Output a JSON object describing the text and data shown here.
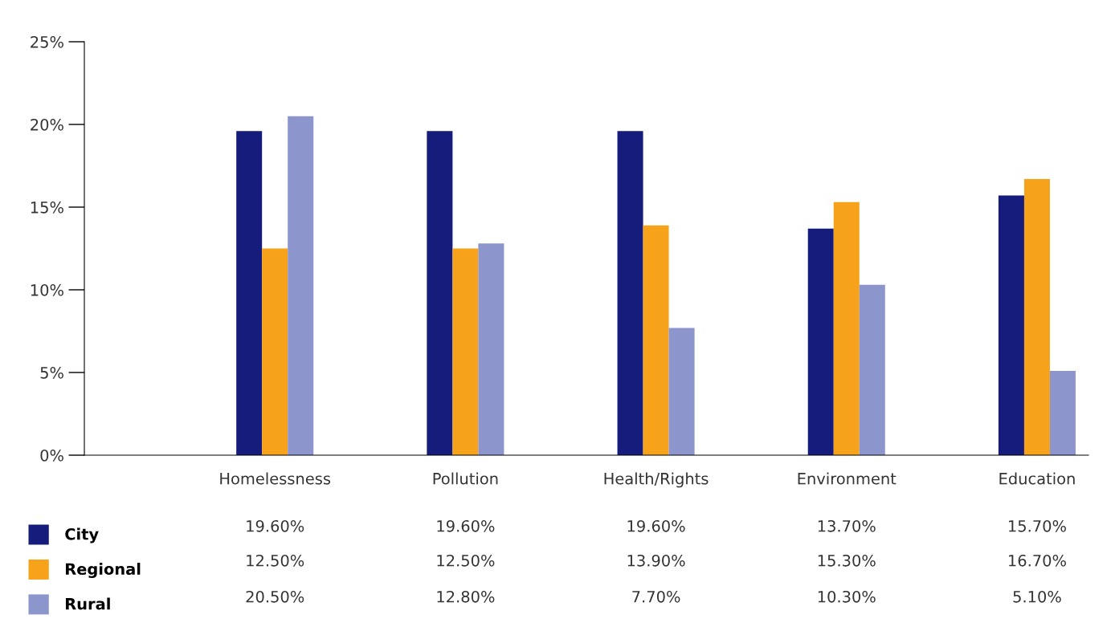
{
  "chart_data": {
    "type": "bar",
    "categories": [
      "Homelessness",
      "Pollution",
      "Health/Rights",
      "Environment",
      "Education"
    ],
    "series": [
      {
        "name": "City",
        "color": "#161c7c",
        "values": [
          19.6,
          19.6,
          19.6,
          13.7,
          15.7
        ],
        "value_labels": [
          "19.60%",
          "19.60%",
          "19.60%",
          "13.70%",
          "15.70%"
        ]
      },
      {
        "name": "Regional",
        "color": "#f7a21b",
        "values": [
          12.5,
          12.5,
          13.9,
          15.3,
          16.7
        ],
        "value_labels": [
          "12.50%",
          "12.50%",
          "13.90%",
          "15.30%",
          "16.70%"
        ]
      },
      {
        "name": "Rural",
        "color": "#8d95cd",
        "values": [
          20.5,
          12.8,
          7.7,
          10.3,
          5.1
        ],
        "value_labels": [
          "20.50%",
          "12.80%",
          "7.70%",
          "10.30%",
          "5.10%"
        ]
      }
    ],
    "ylim": [
      0,
      25
    ],
    "yticks": [
      {
        "value": 0,
        "label": "0%"
      },
      {
        "value": 5,
        "label": "5%"
      },
      {
        "value": 10,
        "label": "10%"
      },
      {
        "value": 15,
        "label": "15%"
      },
      {
        "value": 20,
        "label": "20%"
      },
      {
        "value": 25,
        "label": "25%"
      }
    ],
    "grid": false,
    "legend": "bottom left",
    "data_labels": true
  }
}
